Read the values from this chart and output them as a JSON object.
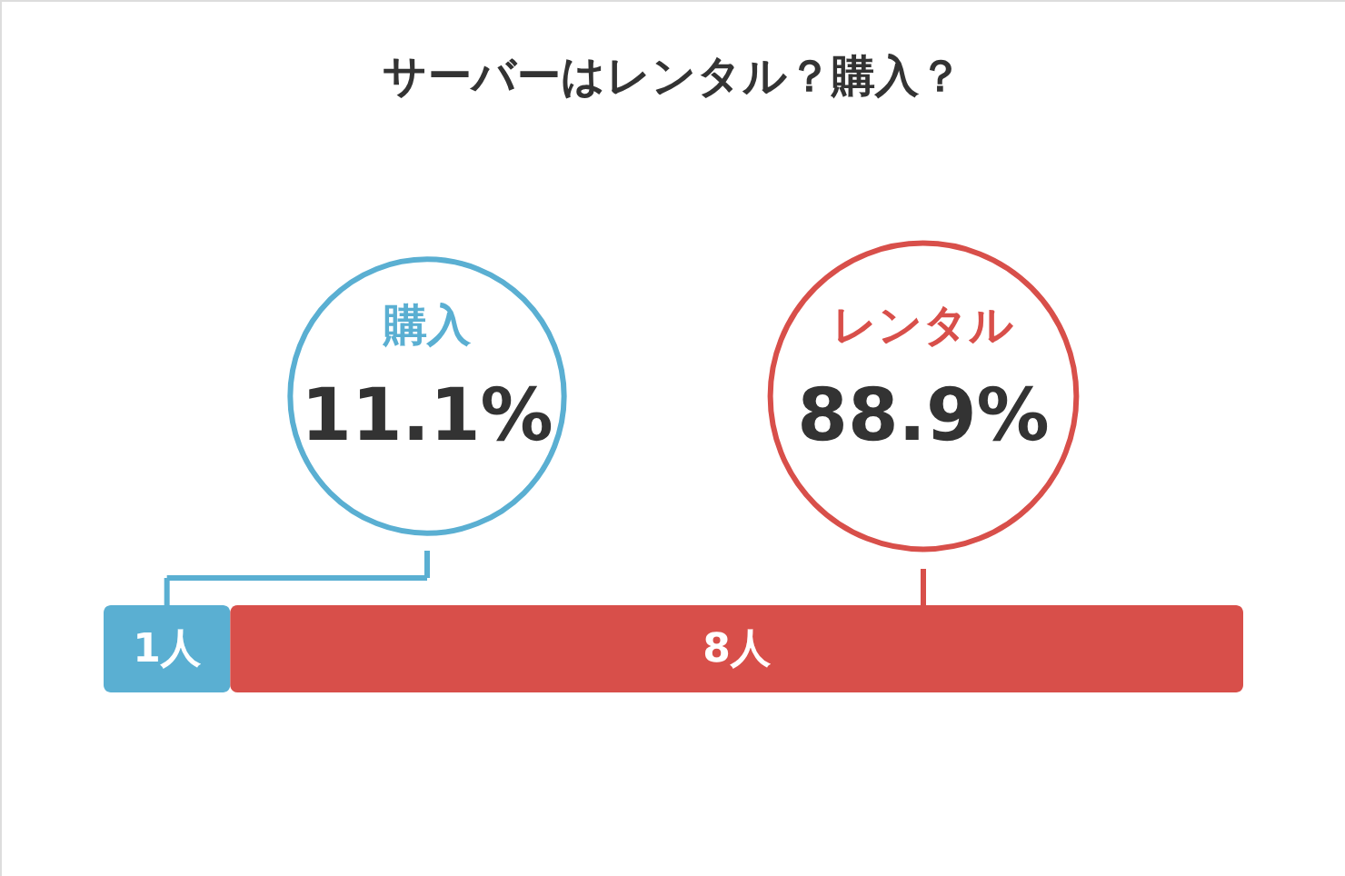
{
  "chart_data": {
    "type": "bar",
    "orientation": "horizontal",
    "stacked": true,
    "title": "サーバーはレンタル？購入？",
    "categories": [
      null
    ],
    "series": [
      {
        "name": "購入",
        "color": "#5aafd2",
        "values": [
          1
        ],
        "value_labels": [
          "1人"
        ]
      },
      {
        "name": "レンタル",
        "color": "#d84f4a",
        "values": [
          8
        ],
        "value_labels": [
          "8人"
        ]
      }
    ],
    "annotations": [
      "11.1%",
      "88.9%"
    ]
  }
}
